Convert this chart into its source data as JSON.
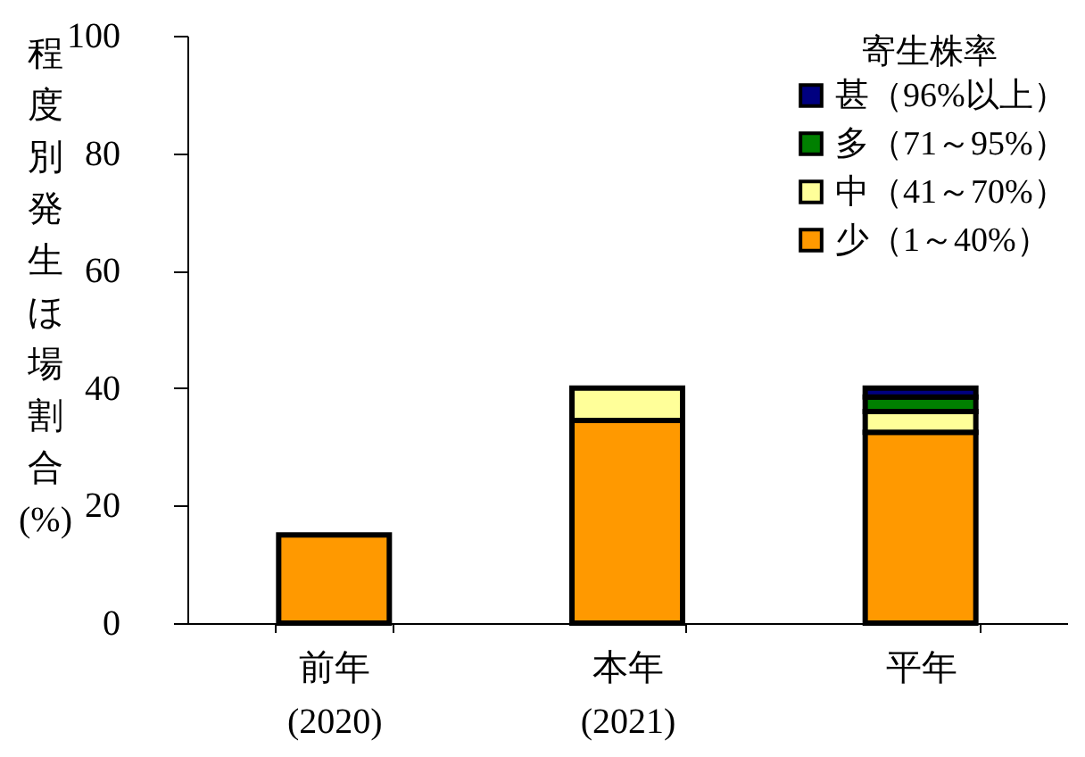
{
  "chart_data": {
    "type": "bar",
    "stacked": true,
    "categories": [
      "前年\n(2020)",
      "本年\n(2021)",
      "平年"
    ],
    "ylabel": "程度別発生ほ場割合(%)",
    "legend_title": "寄生株率",
    "ylim": [
      0,
      100
    ],
    "yticks": [
      0,
      20,
      40,
      60,
      80,
      100
    ],
    "grid": false,
    "legend": "top right",
    "series": [
      {
        "name": "少（1～40%）",
        "color": "#ff9900",
        "values": [
          15,
          34.5,
          32.5
        ]
      },
      {
        "name": "中（41～70%）",
        "color": "#ffff99",
        "values": [
          null,
          5.5,
          3.5
        ]
      },
      {
        "name": "多（71～95%）",
        "color": "#008000",
        "values": [
          null,
          null,
          2.5
        ]
      },
      {
        "name": "甚（96%以上）",
        "color": "#000080",
        "values": [
          null,
          null,
          1.5
        ]
      }
    ]
  }
}
